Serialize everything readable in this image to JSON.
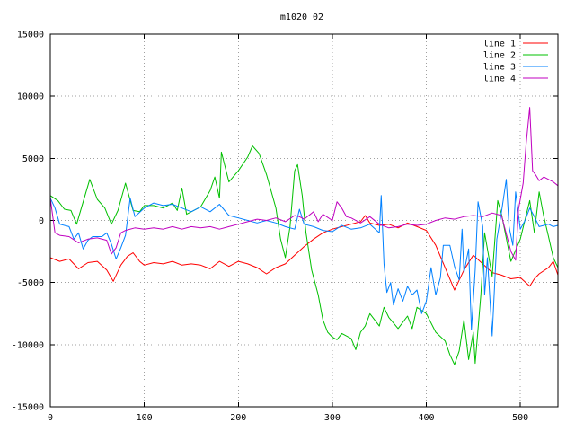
{
  "chart_data": {
    "type": "line",
    "title": "m1020_02",
    "xlabel": "",
    "ylabel": "",
    "xlim": [
      0,
      540
    ],
    "ylim": [
      -15000,
      15000
    ],
    "xticks": [
      0,
      100,
      200,
      300,
      400,
      500
    ],
    "yticks": [
      -15000,
      -10000,
      -5000,
      0,
      5000,
      10000,
      15000
    ],
    "grid": true,
    "legend_position": "top-right",
    "series": [
      {
        "name": "line 1",
        "color": "#ff0000",
        "points": [
          [
            0,
            -3000
          ],
          [
            10,
            -3300
          ],
          [
            20,
            -3100
          ],
          [
            30,
            -3900
          ],
          [
            40,
            -3400
          ],
          [
            50,
            -3300
          ],
          [
            60,
            -4000
          ],
          [
            67,
            -4900
          ],
          [
            75,
            -3600
          ],
          [
            82,
            -2900
          ],
          [
            88,
            -2600
          ],
          [
            95,
            -3300
          ],
          [
            100,
            -3600
          ],
          [
            110,
            -3400
          ],
          [
            120,
            -3500
          ],
          [
            130,
            -3300
          ],
          [
            140,
            -3600
          ],
          [
            150,
            -3500
          ],
          [
            160,
            -3600
          ],
          [
            170,
            -3900
          ],
          [
            180,
            -3300
          ],
          [
            190,
            -3700
          ],
          [
            200,
            -3300
          ],
          [
            210,
            -3500
          ],
          [
            220,
            -3800
          ],
          [
            230,
            -4300
          ],
          [
            240,
            -3800
          ],
          [
            250,
            -3500
          ],
          [
            260,
            -2800
          ],
          [
            270,
            -2100
          ],
          [
            280,
            -1500
          ],
          [
            290,
            -1000
          ],
          [
            300,
            -700
          ],
          [
            310,
            -500
          ],
          [
            320,
            -300
          ],
          [
            330,
            -100
          ],
          [
            335,
            400
          ],
          [
            340,
            -200
          ],
          [
            350,
            -400
          ],
          [
            360,
            -300
          ],
          [
            370,
            -600
          ],
          [
            380,
            -200
          ],
          [
            390,
            -500
          ],
          [
            400,
            -800
          ],
          [
            410,
            -2000
          ],
          [
            420,
            -3800
          ],
          [
            430,
            -5600
          ],
          [
            440,
            -4000
          ],
          [
            450,
            -2800
          ],
          [
            460,
            -3500
          ],
          [
            470,
            -4200
          ],
          [
            480,
            -4400
          ],
          [
            490,
            -4700
          ],
          [
            500,
            -4600
          ],
          [
            510,
            -5300
          ],
          [
            515,
            -4700
          ],
          [
            520,
            -4300
          ],
          [
            530,
            -3800
          ],
          [
            535,
            -3300
          ],
          [
            540,
            -4400
          ]
        ]
      },
      {
        "name": "line 2",
        "color": "#00c000",
        "points": [
          [
            0,
            2000
          ],
          [
            8,
            1600
          ],
          [
            15,
            900
          ],
          [
            22,
            800
          ],
          [
            28,
            -300
          ],
          [
            35,
            1500
          ],
          [
            42,
            3300
          ],
          [
            50,
            1700
          ],
          [
            58,
            1000
          ],
          [
            65,
            -300
          ],
          [
            72,
            800
          ],
          [
            80,
            3000
          ],
          [
            88,
            800
          ],
          [
            95,
            700
          ],
          [
            100,
            1200
          ],
          [
            110,
            1200
          ],
          [
            120,
            1000
          ],
          [
            130,
            1400
          ],
          [
            135,
            800
          ],
          [
            140,
            2600
          ],
          [
            145,
            500
          ],
          [
            150,
            700
          ],
          [
            160,
            1100
          ],
          [
            170,
            2400
          ],
          [
            175,
            3500
          ],
          [
            180,
            1800
          ],
          [
            182,
            5500
          ],
          [
            190,
            3100
          ],
          [
            200,
            4000
          ],
          [
            210,
            5100
          ],
          [
            215,
            6000
          ],
          [
            222,
            5400
          ],
          [
            230,
            3700
          ],
          [
            240,
            1000
          ],
          [
            245,
            -1500
          ],
          [
            250,
            -3000
          ],
          [
            255,
            -500
          ],
          [
            260,
            4000
          ],
          [
            263,
            4500
          ],
          [
            268,
            2000
          ],
          [
            272,
            -1000
          ],
          [
            278,
            -4000
          ],
          [
            285,
            -6000
          ],
          [
            290,
            -8000
          ],
          [
            295,
            -9000
          ],
          [
            300,
            -9400
          ],
          [
            305,
            -9600
          ],
          [
            310,
            -9100
          ],
          [
            320,
            -9500
          ],
          [
            325,
            -10400
          ],
          [
            330,
            -9000
          ],
          [
            335,
            -8500
          ],
          [
            340,
            -7500
          ],
          [
            350,
            -8500
          ],
          [
            355,
            -7000
          ],
          [
            360,
            -7800
          ],
          [
            370,
            -8700
          ],
          [
            380,
            -7700
          ],
          [
            385,
            -8700
          ],
          [
            390,
            -7000
          ],
          [
            400,
            -7500
          ],
          [
            410,
            -9000
          ],
          [
            420,
            -9700
          ],
          [
            425,
            -10800
          ],
          [
            430,
            -11600
          ],
          [
            435,
            -10500
          ],
          [
            440,
            -8000
          ],
          [
            445,
            -11200
          ],
          [
            450,
            -9000
          ],
          [
            452,
            -11500
          ],
          [
            458,
            -6000
          ],
          [
            462,
            -1000
          ],
          [
            470,
            -4500
          ],
          [
            476,
            1600
          ],
          [
            480,
            500
          ],
          [
            490,
            -3300
          ],
          [
            500,
            -1500
          ],
          [
            510,
            1600
          ],
          [
            515,
            -1000
          ],
          [
            520,
            2300
          ],
          [
            525,
            300
          ],
          [
            530,
            -1300
          ],
          [
            535,
            -3000
          ],
          [
            540,
            -3800
          ]
        ]
      },
      {
        "name": "line 3",
        "color": "#0080ff",
        "points": [
          [
            0,
            1800
          ],
          [
            5,
            1000
          ],
          [
            10,
            -300
          ],
          [
            20,
            -500
          ],
          [
            25,
            -1500
          ],
          [
            30,
            -1000
          ],
          [
            35,
            -2300
          ],
          [
            40,
            -1600
          ],
          [
            45,
            -1300
          ],
          [
            55,
            -1300
          ],
          [
            60,
            -1000
          ],
          [
            65,
            -1900
          ],
          [
            70,
            -3100
          ],
          [
            75,
            -2200
          ],
          [
            80,
            -1200
          ],
          [
            85,
            1800
          ],
          [
            90,
            300
          ],
          [
            100,
            1000
          ],
          [
            110,
            1400
          ],
          [
            120,
            1200
          ],
          [
            130,
            1300
          ],
          [
            140,
            1000
          ],
          [
            150,
            700
          ],
          [
            160,
            1100
          ],
          [
            170,
            700
          ],
          [
            180,
            1300
          ],
          [
            190,
            400
          ],
          [
            200,
            200
          ],
          [
            210,
            0
          ],
          [
            220,
            -200
          ],
          [
            230,
            0
          ],
          [
            240,
            -200
          ],
          [
            250,
            -500
          ],
          [
            260,
            -700
          ],
          [
            265,
            900
          ],
          [
            270,
            -300
          ],
          [
            280,
            -500
          ],
          [
            290,
            -800
          ],
          [
            300,
            -900
          ],
          [
            310,
            -400
          ],
          [
            320,
            -700
          ],
          [
            330,
            -600
          ],
          [
            340,
            -300
          ],
          [
            350,
            -1000
          ],
          [
            352,
            2000
          ],
          [
            355,
            -3500
          ],
          [
            358,
            -5800
          ],
          [
            362,
            -5000
          ],
          [
            365,
            -6800
          ],
          [
            370,
            -5500
          ],
          [
            375,
            -6500
          ],
          [
            380,
            -5300
          ],
          [
            385,
            -6000
          ],
          [
            390,
            -5600
          ],
          [
            395,
            -7500
          ],
          [
            400,
            -6500
          ],
          [
            405,
            -3800
          ],
          [
            410,
            -6000
          ],
          [
            415,
            -4600
          ],
          [
            418,
            -2000
          ],
          [
            425,
            -2000
          ],
          [
            430,
            -3700
          ],
          [
            435,
            -4800
          ],
          [
            438,
            -700
          ],
          [
            440,
            -4200
          ],
          [
            445,
            -2300
          ],
          [
            448,
            -8800
          ],
          [
            452,
            -4000
          ],
          [
            455,
            1500
          ],
          [
            460,
            -500
          ],
          [
            462,
            -6000
          ],
          [
            465,
            -3000
          ],
          [
            470,
            -9300
          ],
          [
            475,
            -1500
          ],
          [
            480,
            700
          ],
          [
            485,
            3300
          ],
          [
            488,
            -500
          ],
          [
            492,
            -2000
          ],
          [
            495,
            2300
          ],
          [
            500,
            -700
          ],
          [
            505,
            0
          ],
          [
            510,
            1000
          ],
          [
            515,
            300
          ],
          [
            520,
            -500
          ],
          [
            530,
            -300
          ],
          [
            535,
            -500
          ],
          [
            540,
            -400
          ]
        ]
      },
      {
        "name": "line 4",
        "color": "#c000c0",
        "points": [
          [
            0,
            1800
          ],
          [
            5,
            -1000
          ],
          [
            10,
            -1200
          ],
          [
            20,
            -1300
          ],
          [
            30,
            -1800
          ],
          [
            40,
            -1500
          ],
          [
            50,
            -1400
          ],
          [
            60,
            -1600
          ],
          [
            65,
            -2700
          ],
          [
            70,
            -2200
          ],
          [
            75,
            -1000
          ],
          [
            80,
            -800
          ],
          [
            90,
            -600
          ],
          [
            100,
            -700
          ],
          [
            110,
            -600
          ],
          [
            120,
            -700
          ],
          [
            130,
            -500
          ],
          [
            140,
            -700
          ],
          [
            150,
            -500
          ],
          [
            160,
            -600
          ],
          [
            170,
            -500
          ],
          [
            180,
            -700
          ],
          [
            190,
            -500
          ],
          [
            200,
            -300
          ],
          [
            210,
            -100
          ],
          [
            220,
            100
          ],
          [
            230,
            0
          ],
          [
            240,
            200
          ],
          [
            250,
            -100
          ],
          [
            260,
            400
          ],
          [
            265,
            300
          ],
          [
            270,
            100
          ],
          [
            280,
            700
          ],
          [
            285,
            -100
          ],
          [
            290,
            500
          ],
          [
            300,
            0
          ],
          [
            305,
            1500
          ],
          [
            310,
            1000
          ],
          [
            315,
            300
          ],
          [
            320,
            200
          ],
          [
            330,
            -200
          ],
          [
            340,
            300
          ],
          [
            350,
            -300
          ],
          [
            360,
            -600
          ],
          [
            370,
            -500
          ],
          [
            380,
            -300
          ],
          [
            390,
            -400
          ],
          [
            400,
            -300
          ],
          [
            410,
            0
          ],
          [
            420,
            200
          ],
          [
            430,
            100
          ],
          [
            440,
            300
          ],
          [
            450,
            400
          ],
          [
            460,
            300
          ],
          [
            470,
            600
          ],
          [
            480,
            400
          ],
          [
            490,
            -2500
          ],
          [
            495,
            -3200
          ],
          [
            498,
            900
          ],
          [
            503,
            3000
          ],
          [
            506,
            6000
          ],
          [
            510,
            9100
          ],
          [
            513,
            4000
          ],
          [
            516,
            3700
          ],
          [
            520,
            3200
          ],
          [
            525,
            3500
          ],
          [
            530,
            3300
          ],
          [
            535,
            3100
          ],
          [
            540,
            2800
          ]
        ]
      }
    ]
  }
}
